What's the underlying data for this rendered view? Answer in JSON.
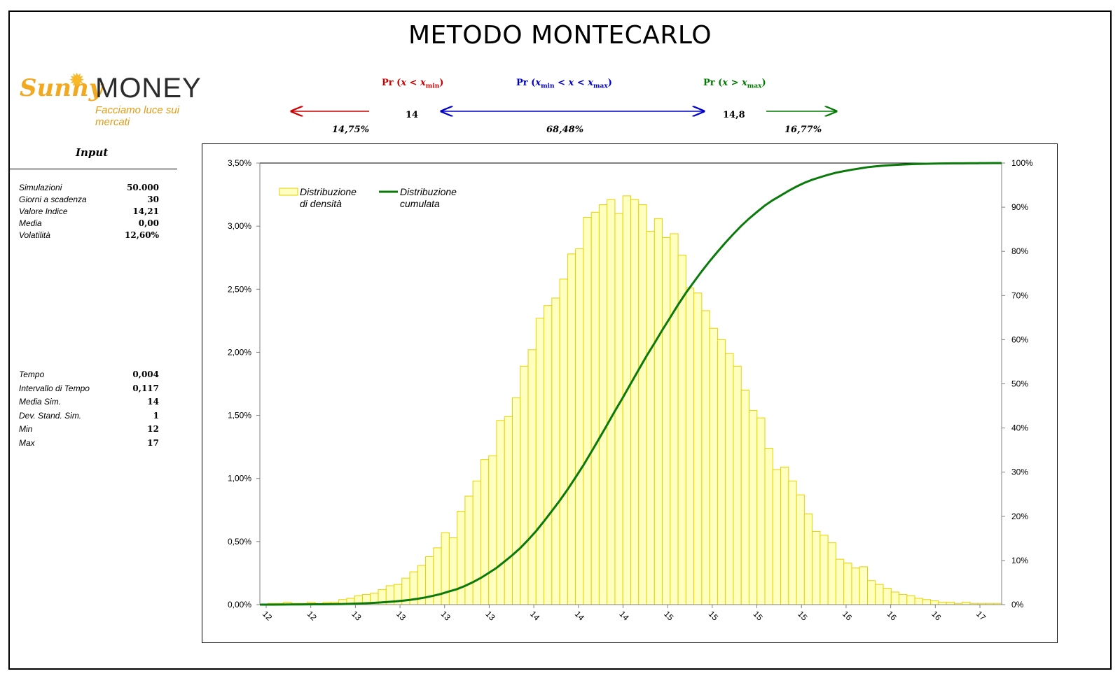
{
  "title": "METODO MONTECARLO",
  "logo": {
    "sunny": "Sunny",
    "money": "MONEY",
    "tagline": "Facciamo luce sui mercati"
  },
  "header": {
    "pr_left": {
      "prefix": "Pr (",
      "x": "x",
      "op": " < ",
      "xm": "x",
      "sub": "min",
      "suffix": ")",
      "color": "#cc0000"
    },
    "pr_mid": {
      "prefix": "Pr (",
      "xm1": "x",
      "sub1": "min",
      "op1": " < ",
      "x": "x",
      "op2": " < ",
      "xm2": "x",
      "sub2": "max",
      "suffix": ")",
      "color": "#0000cc"
    },
    "pr_right": {
      "prefix": "Pr (",
      "x": "x",
      "op": " > ",
      "xm": "x",
      "sub": "max",
      "suffix": ")",
      "color": "#007a00"
    },
    "xmin": "14",
    "xmax": "14,8",
    "pct_left": "14,75%",
    "pct_mid": "68,48%",
    "pct_right": "16,77%"
  },
  "input_panel": {
    "title": "Input",
    "rows": [
      {
        "label": "Simulazioni",
        "value": "50.000"
      },
      {
        "label": "Giorni a scadenza",
        "value": "30"
      },
      {
        "label": "Valore Indice",
        "value": "14,21"
      },
      {
        "label": "Media",
        "value": "0,00"
      },
      {
        "label": "Volatilità",
        "value": "12,60%"
      }
    ],
    "rows2": [
      {
        "label": "Tempo",
        "value": "0,004"
      },
      {
        "label": "Intervallo di Tempo",
        "value": "0,117"
      },
      {
        "label": "Media Sim.",
        "value": "14"
      },
      {
        "label": "Dev. Stand. Sim.",
        "value": "1"
      },
      {
        "label": "Min",
        "value": "12"
      },
      {
        "label": "Max",
        "value": "17"
      }
    ]
  },
  "chart_data": {
    "type": "bar",
    "grid": false,
    "legend_placement": "top-left",
    "colors": {
      "bar_fill": "#ffffc0",
      "bar_stroke": "#e6d200",
      "cumulative": "#0a7a0a"
    },
    "y_left": {
      "ylim": [
        0,
        0.035
      ],
      "ticks": [
        "0,00%",
        "0,50%",
        "1,00%",
        "1,50%",
        "2,00%",
        "2,50%",
        "3,00%",
        "3,50%"
      ]
    },
    "y_right": {
      "ylim": [
        0,
        1
      ],
      "ticks": [
        "0%",
        "10%",
        "20%",
        "30%",
        "40%",
        "50%",
        "60%",
        "70%",
        "80%",
        "90%",
        "100%"
      ]
    },
    "x_tick_labels": [
      "12",
      "12",
      "13",
      "13",
      "13",
      "13",
      "14",
      "14",
      "14",
      "15",
      "15",
      "15",
      "15",
      "16",
      "16",
      "16",
      "17"
    ],
    "series": [
      {
        "name": "Distribuzione di densità",
        "legend_lines": [
          "Distribuzione",
          "di densità"
        ],
        "type": "bar",
        "values": [
          0,
          0.0001,
          0.0001,
          0.0002,
          0.0001,
          0.0001,
          0.0002,
          0.0001,
          0.0002,
          0.0002,
          0.0004,
          0.0005,
          0.0007,
          0.0008,
          0.0009,
          0.0012,
          0.0015,
          0.0016,
          0.0021,
          0.0026,
          0.0031,
          0.0038,
          0.0045,
          0.0057,
          0.0053,
          0.0074,
          0.0086,
          0.0098,
          0.0115,
          0.0118,
          0.0146,
          0.0149,
          0.0164,
          0.0189,
          0.0202,
          0.0227,
          0.0237,
          0.0243,
          0.0258,
          0.0278,
          0.0282,
          0.0307,
          0.0311,
          0.0317,
          0.0321,
          0.031,
          0.0324,
          0.0321,
          0.0317,
          0.0296,
          0.0306,
          0.0291,
          0.0294,
          0.0277,
          0.0251,
          0.0247,
          0.0233,
          0.0219,
          0.021,
          0.0199,
          0.0189,
          0.017,
          0.0154,
          0.0148,
          0.0124,
          0.0107,
          0.0109,
          0.0098,
          0.0087,
          0.0072,
          0.0058,
          0.0055,
          0.0049,
          0.0036,
          0.0033,
          0.0029,
          0.003,
          0.0019,
          0.0016,
          0.0013,
          0.001,
          0.0008,
          0.0007,
          0.0005,
          0.0004,
          0.0003,
          0.0002,
          0.0002,
          0.0001,
          0.0002,
          0.0001,
          0.0001,
          0.0001,
          0.0001
        ]
      },
      {
        "name": "Distribuzione cumulata",
        "legend_lines": [
          "Distribuzione",
          "cumulata"
        ],
        "type": "line",
        "axis": "right"
      }
    ]
  }
}
